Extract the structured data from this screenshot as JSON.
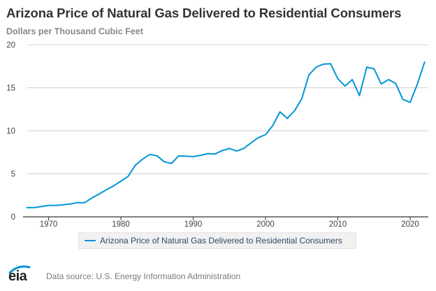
{
  "title": "Arizona Price of Natural Gas Delivered to Residential Consumers",
  "subtitle": "Dollars per Thousand Cubic Feet",
  "legend": {
    "label": "Arizona Price of Natural Gas Delivered to Residential Consumers"
  },
  "footer": {
    "source": "Data source: U.S. Energy Information Administration",
    "logo_text": "eia"
  },
  "colors": {
    "series": "#0096d7",
    "grid": "#d0d0d0",
    "axis": "#333333"
  },
  "chart_data": {
    "type": "line",
    "title": "Arizona Price of Natural Gas Delivered to Residential Consumers",
    "ylabel": "Dollars per Thousand Cubic Feet",
    "xlabel": "",
    "xlim": [
      1966.5,
      2023
    ],
    "ylim": [
      0,
      20
    ],
    "x_ticks": [
      1970,
      1980,
      1990,
      2000,
      2010,
      2020
    ],
    "y_ticks": [
      0,
      5,
      10,
      15,
      20
    ],
    "grid": true,
    "legend_position": "bottom-center",
    "series": [
      {
        "name": "Arizona Price of Natural Gas Delivered to Residential Consumers",
        "x": [
          1967,
          1968,
          1969,
          1970,
          1971,
          1972,
          1973,
          1974,
          1975,
          1976,
          1977,
          1978,
          1979,
          1980,
          1981,
          1982,
          1983,
          1984,
          1985,
          1986,
          1987,
          1988,
          1989,
          1990,
          1991,
          1992,
          1993,
          1994,
          1995,
          1996,
          1997,
          1998,
          1999,
          2000,
          2001,
          2002,
          2003,
          2004,
          2005,
          2006,
          2007,
          2008,
          2009,
          2010,
          2011,
          2012,
          2013,
          2014,
          2015,
          2016,
          2017,
          2018,
          2019,
          2020,
          2021,
          2022
        ],
        "values": [
          1.08,
          1.08,
          1.2,
          1.33,
          1.33,
          1.4,
          1.5,
          1.65,
          1.65,
          2.2,
          2.65,
          3.15,
          3.6,
          4.15,
          4.7,
          6.0,
          6.7,
          7.25,
          7.1,
          6.4,
          6.2,
          7.1,
          7.05,
          7.0,
          7.15,
          7.35,
          7.3,
          7.7,
          7.95,
          7.65,
          7.95,
          8.6,
          9.2,
          9.55,
          10.6,
          12.2,
          11.45,
          12.3,
          13.7,
          16.5,
          17.4,
          17.75,
          17.8,
          16.05,
          15.2,
          15.95,
          14.1,
          17.4,
          17.2,
          15.45,
          15.95,
          15.5,
          13.65,
          13.3,
          15.45,
          18.0
        ]
      }
    ]
  }
}
